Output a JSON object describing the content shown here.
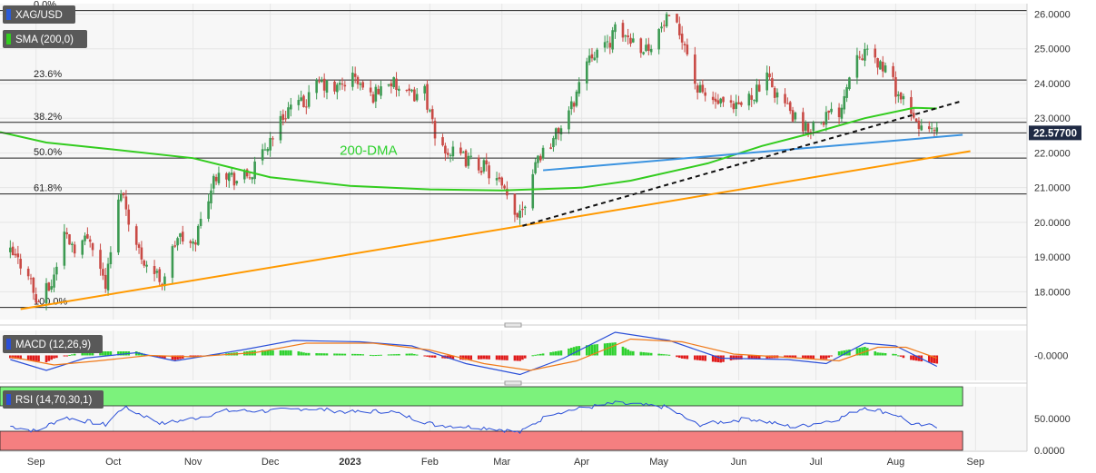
{
  "chart_data": [
    {
      "type": "candlestick",
      "symbol": "XAG/USD",
      "indicator_tag": "SMA (200,0)",
      "annotation": "200-DMA",
      "last_price": "22.57700",
      "x_axis": {
        "labels": [
          {
            "t": "2022-09-01",
            "text": "Sep"
          },
          {
            "t": "2022-10-01",
            "text": "Oct"
          },
          {
            "t": "2022-11-01",
            "text": "Nov"
          },
          {
            "t": "2022-12-01",
            "text": "Dec"
          },
          {
            "t": "2023-01-01",
            "text": "2023"
          },
          {
            "t": "2023-02-01",
            "text": "Feb"
          },
          {
            "t": "2023-03-01",
            "text": "Mar"
          },
          {
            "t": "2023-04-01",
            "text": "Apr"
          },
          {
            "t": "2023-05-01",
            "text": "May"
          },
          {
            "t": "2023-06-01",
            "text": "Jun"
          },
          {
            "t": "2023-07-01",
            "text": "Jul"
          },
          {
            "t": "2023-08-01",
            "text": "Aug"
          },
          {
            "t": "2023-09-01",
            "text": "Sep"
          }
        ]
      },
      "y_axis": {
        "range": [
          17.2,
          26.3
        ],
        "ticks": [
          {
            "v": 18,
            "text": "18.0000"
          },
          {
            "v": 19,
            "text": "19.0000"
          },
          {
            "v": 20,
            "text": "20.0000"
          },
          {
            "v": 21,
            "text": "21.0000"
          },
          {
            "v": 22,
            "text": "22.0000"
          },
          {
            "v": 23,
            "text": "23.0000"
          },
          {
            "v": 24,
            "text": "24.0000"
          },
          {
            "v": 25,
            "text": "25.0000"
          },
          {
            "v": 26,
            "text": "26.0000"
          }
        ]
      },
      "fibonacci": [
        {
          "label": "0.0%",
          "v": 26.1
        },
        {
          "label": "23.6%",
          "v": 24.1
        },
        {
          "label": "38.2%",
          "v": 22.88
        },
        {
          "label": "50.0%",
          "v": 21.85
        },
        {
          "label": "61.8%",
          "v": 20.82
        },
        {
          "label": "100.0%",
          "v": 17.55
        }
      ],
      "price_series": [
        [
          "2022-08-22",
          19.1
        ],
        [
          "2022-08-29",
          18.6
        ],
        [
          "2022-09-01",
          17.7
        ],
        [
          "2022-09-07",
          18.2
        ],
        [
          "2022-09-12",
          19.7
        ],
        [
          "2022-09-16",
          19.3
        ],
        [
          "2022-09-22",
          19.6
        ],
        [
          "2022-09-28",
          18.2
        ],
        [
          "2022-10-04",
          21.0
        ],
        [
          "2022-10-10",
          19.3
        ],
        [
          "2022-10-14",
          18.8
        ],
        [
          "2022-10-20",
          18.3
        ],
        [
          "2022-10-26",
          19.6
        ],
        [
          "2022-11-01",
          19.3
        ],
        [
          "2022-11-07",
          20.8
        ],
        [
          "2022-11-11",
          21.6
        ],
        [
          "2022-11-18",
          21.2
        ],
        [
          "2022-11-24",
          21.4
        ],
        [
          "2022-12-01",
          22.4
        ],
        [
          "2022-12-08",
          23.3
        ],
        [
          "2022-12-14",
          23.4
        ],
        [
          "2022-12-20",
          24.0
        ],
        [
          "2022-12-26",
          23.8
        ],
        [
          "2023-01-02",
          24.2
        ],
        [
          "2023-01-09",
          23.6
        ],
        [
          "2023-01-16",
          24.1
        ],
        [
          "2023-01-23",
          23.6
        ],
        [
          "2023-01-30",
          23.8
        ],
        [
          "2023-02-03",
          22.4
        ],
        [
          "2023-02-09",
          22.0
        ],
        [
          "2023-02-15",
          21.8
        ],
        [
          "2023-02-22",
          21.6
        ],
        [
          "2023-02-28",
          21.1
        ],
        [
          "2023-03-06",
          20.2
        ],
        [
          "2023-03-10",
          20.6
        ],
        [
          "2023-03-14",
          21.8
        ],
        [
          "2023-03-21",
          22.4
        ],
        [
          "2023-03-28",
          23.3
        ],
        [
          "2023-04-04",
          24.9
        ],
        [
          "2023-04-10",
          25.0
        ],
        [
          "2023-04-14",
          25.5
        ],
        [
          "2023-04-20",
          25.3
        ],
        [
          "2023-04-26",
          25.0
        ],
        [
          "2023-05-04",
          25.8
        ],
        [
          "2023-05-10",
          25.4
        ],
        [
          "2023-05-16",
          23.8
        ],
        [
          "2023-05-22",
          23.5
        ],
        [
          "2023-05-30",
          23.2
        ],
        [
          "2023-06-05",
          23.6
        ],
        [
          "2023-06-12",
          24.1
        ],
        [
          "2023-06-19",
          23.4
        ],
        [
          "2023-06-26",
          22.6
        ],
        [
          "2023-07-03",
          23.0
        ],
        [
          "2023-07-10",
          23.2
        ],
        [
          "2023-07-17",
          25.0
        ],
        [
          "2023-07-21",
          24.8
        ],
        [
          "2023-07-27",
          24.5
        ],
        [
          "2023-08-02",
          23.7
        ],
        [
          "2023-08-08",
          22.9
        ],
        [
          "2023-08-14",
          22.6
        ],
        [
          "2023-08-17",
          22.577
        ]
      ],
      "sma_series": [
        [
          "2022-08-18",
          22.6
        ],
        [
          "2022-09-05",
          22.3
        ],
        [
          "2022-10-01",
          22.1
        ],
        [
          "2022-11-01",
          21.85
        ],
        [
          "2022-12-01",
          21.3
        ],
        [
          "2023-01-01",
          21.05
        ],
        [
          "2023-02-01",
          20.95
        ],
        [
          "2023-03-01",
          20.92
        ],
        [
          "2023-04-01",
          21.0
        ],
        [
          "2023-04-20",
          21.2
        ],
        [
          "2023-05-20",
          21.7
        ],
        [
          "2023-06-10",
          22.2
        ],
        [
          "2023-07-01",
          22.6
        ],
        [
          "2023-07-20",
          23.0
        ],
        [
          "2023-08-08",
          23.3
        ],
        [
          "2023-08-17",
          23.28
        ]
      ],
      "trendlines": [
        {
          "name": "orange support",
          "color": "#ff9900",
          "style": "solid",
          "from": [
            "2022-08-26",
            17.5
          ],
          "to": [
            "2023-08-30",
            22.05
          ]
        },
        {
          "name": "blue support",
          "color": "#3b93e0",
          "style": "solid",
          "from": [
            "2023-03-17",
            21.5
          ],
          "to": [
            "2023-08-27",
            22.52
          ]
        },
        {
          "name": "dashed support",
          "color": "#111111",
          "style": "dashed",
          "from": [
            "2023-03-09",
            19.9
          ],
          "to": [
            "2023-08-27",
            23.5
          ]
        }
      ]
    },
    {
      "type": "line",
      "indicator_tag": "MACD (12,26,9)",
      "y_axis": {
        "ticks": [
          {
            "v": 0,
            "text": "-0.0000"
          }
        ]
      },
      "macd": [
        [
          "2022-08-22",
          -0.15
        ],
        [
          "2022-09-05",
          -0.55
        ],
        [
          "2022-09-20",
          -0.1
        ],
        [
          "2022-10-10",
          0.1
        ],
        [
          "2022-10-25",
          -0.2
        ],
        [
          "2022-11-20",
          0.2
        ],
        [
          "2022-12-10",
          0.55
        ],
        [
          "2023-01-05",
          0.5
        ],
        [
          "2023-01-25",
          0.35
        ],
        [
          "2023-02-15",
          -0.3
        ],
        [
          "2023-03-08",
          -0.7
        ],
        [
          "2023-03-25",
          -0.1
        ],
        [
          "2023-04-14",
          0.85
        ],
        [
          "2023-05-05",
          0.55
        ],
        [
          "2023-05-25",
          -0.1
        ],
        [
          "2023-06-20",
          -0.15
        ],
        [
          "2023-07-05",
          -0.3
        ],
        [
          "2023-07-20",
          0.45
        ],
        [
          "2023-08-01",
          0.35
        ],
        [
          "2023-08-17",
          -0.4
        ]
      ],
      "signal": [
        [
          "2022-08-22",
          -0.05
        ],
        [
          "2022-09-08",
          -0.35
        ],
        [
          "2022-09-25",
          -0.2
        ],
        [
          "2022-10-15",
          0.0
        ],
        [
          "2022-11-01",
          -0.05
        ],
        [
          "2022-11-25",
          0.1
        ],
        [
          "2022-12-15",
          0.45
        ],
        [
          "2023-01-10",
          0.45
        ],
        [
          "2023-02-01",
          0.2
        ],
        [
          "2023-02-22",
          -0.3
        ],
        [
          "2023-03-12",
          -0.55
        ],
        [
          "2023-03-30",
          -0.2
        ],
        [
          "2023-04-20",
          0.6
        ],
        [
          "2023-05-10",
          0.5
        ],
        [
          "2023-05-30",
          0.05
        ],
        [
          "2023-06-25",
          -0.1
        ],
        [
          "2023-07-10",
          -0.2
        ],
        [
          "2023-07-25",
          0.3
        ],
        [
          "2023-08-05",
          0.3
        ],
        [
          "2023-08-17",
          -0.1
        ]
      ]
    },
    {
      "type": "line",
      "indicator_tag": "RSI (14,70,30,1)",
      "y_axis": {
        "range": [
          0,
          100
        ],
        "ticks": [
          {
            "v": 50,
            "text": "50.0000"
          },
          {
            "v": 0,
            "text": "0.0000"
          }
        ]
      },
      "overbought": 70,
      "oversold": 30,
      "rsi": [
        [
          "2022-08-22",
          38
        ],
        [
          "2022-09-01",
          30
        ],
        [
          "2022-09-12",
          52
        ],
        [
          "2022-09-28",
          40
        ],
        [
          "2022-10-05",
          68
        ],
        [
          "2022-10-20",
          42
        ],
        [
          "2022-11-01",
          50
        ],
        [
          "2022-11-14",
          62
        ],
        [
          "2022-12-01",
          62
        ],
        [
          "2022-12-15",
          66
        ],
        [
          "2023-01-02",
          60
        ],
        [
          "2023-01-16",
          62
        ],
        [
          "2023-02-03",
          40
        ],
        [
          "2023-02-25",
          35
        ],
        [
          "2023-03-08",
          28
        ],
        [
          "2023-03-20",
          58
        ],
        [
          "2023-04-04",
          68
        ],
        [
          "2023-04-14",
          74
        ],
        [
          "2023-05-04",
          68
        ],
        [
          "2023-05-16",
          40
        ],
        [
          "2023-06-05",
          50
        ],
        [
          "2023-06-23",
          36
        ],
        [
          "2023-07-10",
          50
        ],
        [
          "2023-07-20",
          68
        ],
        [
          "2023-08-02",
          55
        ],
        [
          "2023-08-08",
          40
        ],
        [
          "2023-08-17",
          38
        ]
      ]
    }
  ]
}
